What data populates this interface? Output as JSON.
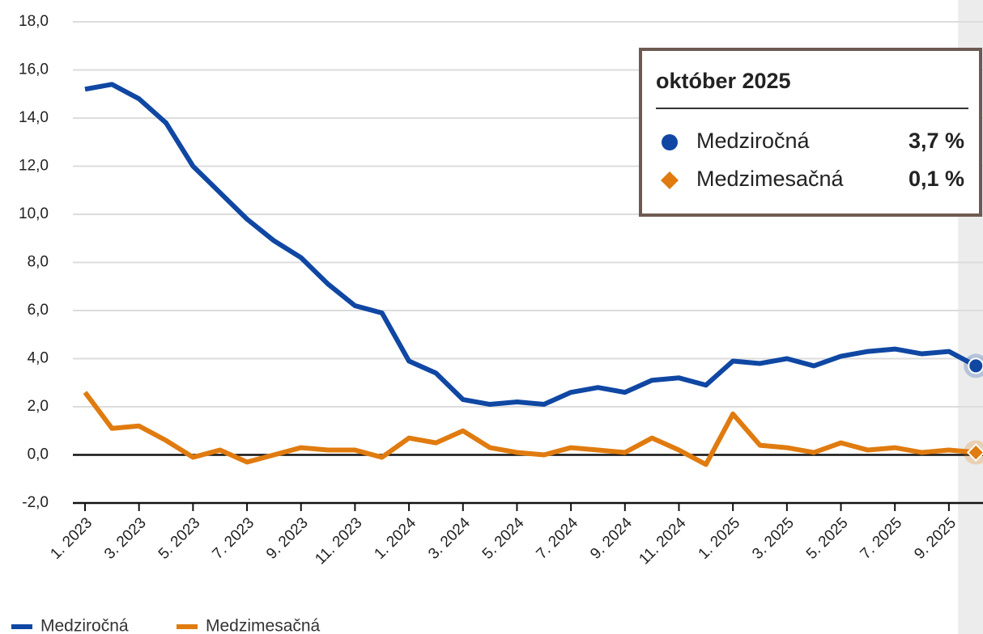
{
  "chart_data": {
    "type": "line",
    "categories": [
      "1. 2023",
      null,
      "3. 2023",
      null,
      "5. 2023",
      null,
      "7. 2023",
      null,
      "9. 2023",
      null,
      "11. 2023",
      null,
      "1. 2024",
      null,
      "3. 2024",
      null,
      "5. 2024",
      null,
      "7. 2024",
      null,
      "9. 2024",
      null,
      "11. 2024",
      null,
      "1. 2025",
      null,
      "3. 2025",
      null,
      "5. 2025",
      null,
      "7. 2025",
      null,
      "9. 2025",
      null
    ],
    "series": [
      {
        "name": "Medziročná",
        "color": "#0f47a3",
        "values": [
          15.2,
          15.4,
          14.8,
          13.8,
          12.0,
          10.9,
          9.8,
          8.9,
          8.2,
          7.1,
          6.2,
          5.9,
          3.9,
          3.4,
          2.3,
          2.1,
          2.2,
          2.1,
          2.6,
          2.8,
          2.6,
          3.1,
          3.2,
          2.9,
          3.9,
          3.8,
          4.0,
          3.7,
          4.1,
          4.3,
          4.4,
          4.2,
          4.3,
          3.7
        ]
      },
      {
        "name": "Medzimesačná",
        "color": "#e07b0f",
        "values": [
          2.6,
          1.1,
          1.2,
          0.6,
          -0.1,
          0.2,
          -0.3,
          0.0,
          0.3,
          0.2,
          0.2,
          -0.1,
          0.7,
          0.5,
          1.0,
          0.3,
          0.1,
          0.0,
          0.3,
          0.2,
          0.1,
          0.7,
          0.2,
          -0.4,
          1.7,
          0.4,
          0.3,
          0.1,
          0.5,
          0.2,
          0.3,
          0.1,
          0.2,
          0.1
        ]
      }
    ],
    "ylim": [
      -2,
      18
    ],
    "yticks": [
      {
        "value": -2,
        "label": "-2,0"
      },
      {
        "value": 0,
        "label": "0,0"
      },
      {
        "value": 2,
        "label": "2,0"
      },
      {
        "value": 4,
        "label": "4,0"
      },
      {
        "value": 6,
        "label": "6,0"
      },
      {
        "value": 8,
        "label": "8,0"
      },
      {
        "value": 10,
        "label": "10,0"
      },
      {
        "value": 12,
        "label": "12,0"
      },
      {
        "value": 14,
        "label": "14,0"
      },
      {
        "value": 16,
        "label": "16,0"
      },
      {
        "value": 18,
        "label": "18,0"
      }
    ],
    "grid": true,
    "legend": "bottom-left",
    "tooltip": {
      "title": "október 2025",
      "labels": [
        "3,7 %",
        "0,1 %"
      ]
    }
  }
}
